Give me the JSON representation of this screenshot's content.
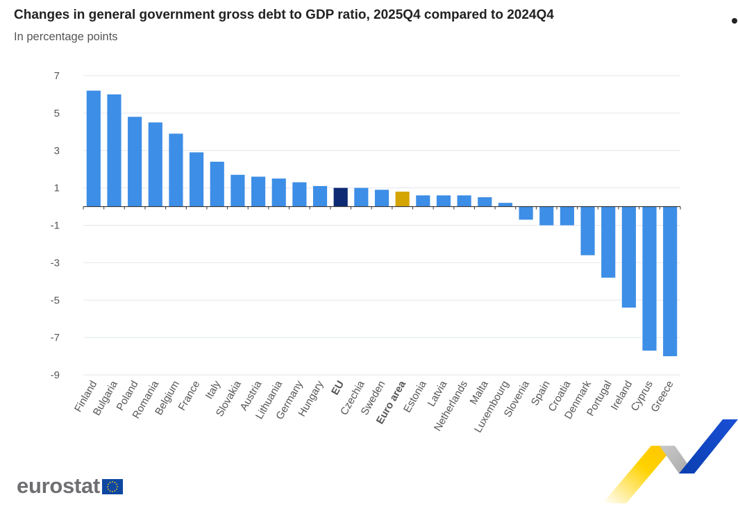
{
  "header": {
    "title": "Changes in general government gross debt to GDP ratio, 2025Q4 compared to 2024Q4",
    "subtitle": "In percentage points"
  },
  "brand": {
    "logo_text": "eurostat"
  },
  "colors": {
    "default_bar": "#3d8ee6",
    "eu_bar": "#0d2a73",
    "euro_area_bar": "#d4a400",
    "grid": "#e2e6ee",
    "axis_text": "#555555"
  },
  "chart_data": {
    "type": "bar",
    "title": "Changes in general government gross debt to GDP ratio, 2025Q4 compared to 2024Q4",
    "subtitle": "In percentage points",
    "xlabel": "",
    "ylabel": "",
    "ylim": [
      -9,
      7
    ],
    "yticks": [
      7,
      5,
      3,
      1,
      -1,
      -3,
      -5,
      -7,
      -9
    ],
    "grid": true,
    "legend": "none",
    "highlight": {
      "EU": "#0d2a73",
      "Euro area": "#d4a400"
    },
    "bold_categories": [
      "EU",
      "Euro area"
    ],
    "categories": [
      "Finland",
      "Bulgaria",
      "Poland",
      "Romania",
      "Belgium",
      "France",
      "Italy",
      "Slovakia",
      "Austria",
      "Lithuania",
      "Germany",
      "Hungary",
      "EU",
      "Czechia",
      "Sweden",
      "Euro area",
      "Estonia",
      "Latvia",
      "Netherlands",
      "Malta",
      "Luxembourg",
      "Slovenia",
      "Spain",
      "Croatia",
      "Denmark",
      "Portugal",
      "Ireland",
      "Cyprus",
      "Greece"
    ],
    "values": [
      6.2,
      6.0,
      4.8,
      4.5,
      3.9,
      2.9,
      2.4,
      1.7,
      1.6,
      1.5,
      1.3,
      1.1,
      1.0,
      1.0,
      0.9,
      0.8,
      0.6,
      0.6,
      0.6,
      0.5,
      0.2,
      -0.7,
      -1.0,
      -1.0,
      -2.6,
      -3.8,
      -5.4,
      -7.7,
      -8.0
    ]
  }
}
